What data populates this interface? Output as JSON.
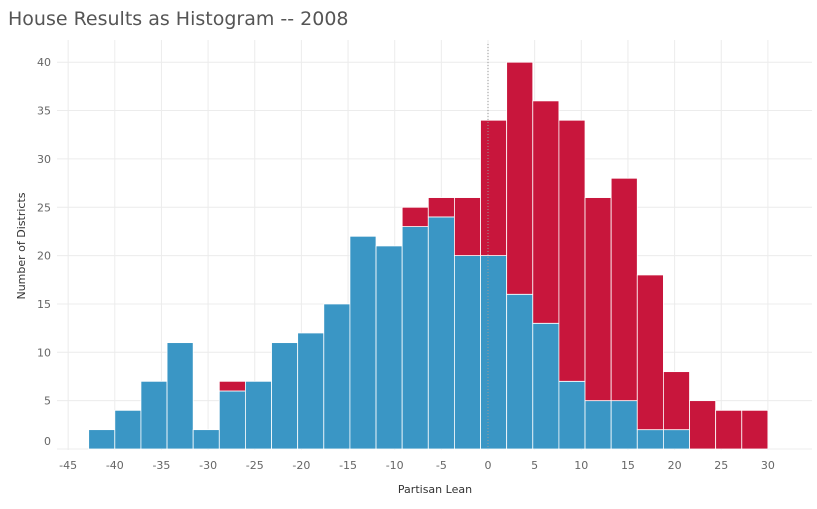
{
  "title": "House Results as Histogram -- 2008",
  "chart_data": {
    "type": "bar",
    "title": "House Results as Histogram -- 2008",
    "xlabel": "Partisan Lean",
    "ylabel": "Number of Districts",
    "xlim": [
      -45,
      32
    ],
    "ylim": [
      0,
      40
    ],
    "x_ticks": [
      -45,
      -40,
      -35,
      -30,
      -25,
      -20,
      -15,
      -10,
      -5,
      0,
      5,
      10,
      15,
      20,
      25,
      30
    ],
    "y_ticks": [
      0,
      5,
      10,
      15,
      20,
      25,
      30,
      35,
      40
    ],
    "bin_width": 2.8,
    "bin_starts": [
      -42.8,
      -40.0,
      -37.2,
      -34.4,
      -31.6,
      -28.8,
      -26.0,
      -23.2,
      -20.4,
      -17.6,
      -14.8,
      -12.0,
      -9.2,
      -6.4,
      -3.6,
      -0.8,
      2.0,
      4.8,
      7.6,
      10.4,
      13.2,
      16.0,
      18.8,
      21.6,
      24.4,
      27.2
    ],
    "series": [
      {
        "color": "#3a96c5",
        "values": [
          2,
          4,
          7,
          11,
          2,
          6,
          7,
          11,
          12,
          15,
          22,
          21,
          23,
          24,
          20,
          20,
          16,
          13,
          7,
          5,
          5,
          2,
          2,
          0,
          0,
          0
        ]
      },
      {
        "color": "#c8163c",
        "values": [
          0,
          0,
          0,
          0,
          0,
          1,
          0,
          0,
          0,
          0,
          0,
          0,
          2,
          2,
          6,
          14,
          24,
          23,
          27,
          21,
          23,
          16,
          6,
          5,
          4,
          4
        ]
      }
    ],
    "stacked": true,
    "reference_line": {
      "x": 0,
      "style": "dotted"
    },
    "grid": true,
    "legend": "none"
  }
}
